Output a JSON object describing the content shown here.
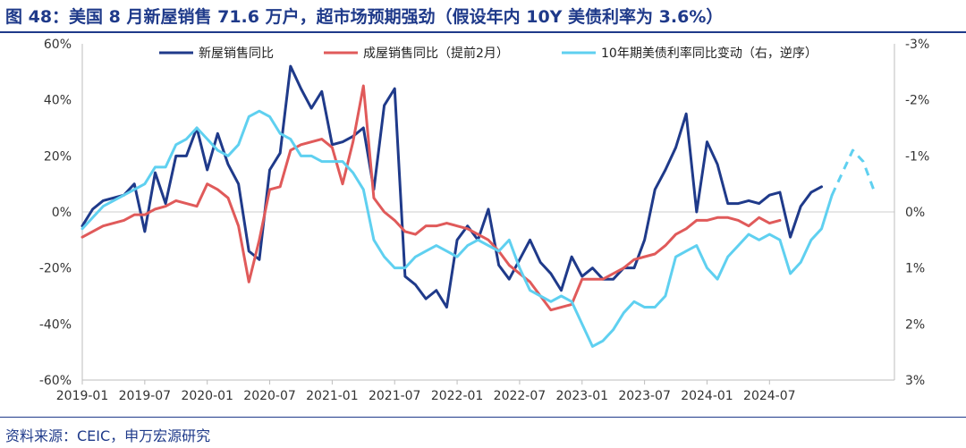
{
  "header": {
    "title": "图 48：美国 8 月新屋销售 71.6 万户，超市场预期强劲（假设年内 10Y 美债利率为 3.6%）"
  },
  "footer": {
    "source": "资料来源：CEIC，申万宏源研究"
  },
  "chart_data": {
    "type": "line",
    "title": "",
    "xlabel": "",
    "ylabel": "",
    "x_tick_labels": [
      "2019-01",
      "2019-07",
      "2020-01",
      "2020-07",
      "2021-01",
      "2021-07",
      "2022-01",
      "2022-07",
      "2023-01",
      "2023-07",
      "2024-01",
      "2024-07"
    ],
    "y_left": {
      "min": -60,
      "max": 60,
      "ticks": [
        "60%",
        "40%",
        "20%",
        "0%",
        "-20%",
        "-40%",
        "-60%"
      ]
    },
    "y_right": {
      "min": -3,
      "max": 3,
      "inverted": true,
      "ticks": [
        "-3%",
        "-2%",
        "-1%",
        "0%",
        "1%",
        "2%",
        "3%"
      ]
    },
    "legend_position": "top",
    "series": [
      {
        "name": "新屋销售同比",
        "color": "#1f3a8a",
        "axis": "left",
        "start": "2019-01",
        "values": [
          -5,
          1,
          4,
          5,
          6,
          10,
          -7,
          14,
          3,
          20,
          20,
          30,
          15,
          28,
          17,
          10,
          -14,
          -17,
          15,
          21,
          52,
          44,
          37,
          43,
          24,
          25,
          27,
          30,
          8,
          38,
          44,
          -23,
          -26,
          -31,
          -28,
          -34,
          -10,
          -5,
          -10,
          1,
          -19,
          -24,
          -17,
          -10,
          -18,
          -22,
          -28,
          -16,
          -23,
          -20,
          -24,
          -24,
          -20,
          -20,
          -10,
          8,
          15,
          23,
          35,
          0,
          25,
          17,
          3,
          3,
          4,
          3,
          6,
          7,
          -9,
          2,
          7,
          9
        ],
        "dashed_from_index": null
      },
      {
        "name": "成屋销售同比（提前2月）",
        "color": "#e05a5a",
        "axis": "left",
        "start": "2019-01",
        "values": [
          -9,
          -7,
          -5,
          -4,
          -3,
          -1,
          -1,
          1,
          2,
          4,
          3,
          2,
          10,
          8,
          5,
          -5,
          -25,
          -10,
          8,
          9,
          22,
          24,
          25,
          26,
          23,
          10,
          25,
          45,
          5,
          0,
          -3,
          -7,
          -8,
          -5,
          -5,
          -4,
          -5,
          -6,
          -8,
          -10,
          -14,
          -19,
          -22,
          -25,
          -30,
          -35,
          -34,
          -33,
          -24,
          -24,
          -24,
          -22,
          -20,
          -17,
          -16,
          -15,
          -12,
          -8,
          -6,
          -3,
          -3,
          -2,
          -2,
          -3,
          -5,
          -2,
          -4,
          -3
        ],
        "dashed_from_index": null
      },
      {
        "name": "10年期美债利率同比变动（右，逆序）",
        "color": "#5fd0f0",
        "axis": "right",
        "start": "2019-01",
        "values": [
          0.3,
          0.1,
          -0.1,
          -0.2,
          -0.3,
          -0.4,
          -0.5,
          -0.8,
          -0.8,
          -1.2,
          -1.3,
          -1.5,
          -1.3,
          -1.1,
          -1.0,
          -1.2,
          -1.7,
          -1.8,
          -1.7,
          -1.4,
          -1.3,
          -1.0,
          -1.0,
          -0.9,
          -0.9,
          -0.9,
          -0.7,
          -0.4,
          0.5,
          0.8,
          1.0,
          1.0,
          0.8,
          0.7,
          0.6,
          0.7,
          0.8,
          0.6,
          0.5,
          0.6,
          0.7,
          0.5,
          1.0,
          1.4,
          1.5,
          1.6,
          1.5,
          1.6,
          2.0,
          2.4,
          2.3,
          2.1,
          1.8,
          1.6,
          1.7,
          1.7,
          1.5,
          0.8,
          0.7,
          0.6,
          1.0,
          1.2,
          0.8,
          0.6,
          0.4,
          0.5,
          0.4,
          0.5,
          1.1,
          0.9,
          0.5,
          0.3,
          -0.3,
          -0.7,
          -1.1,
          -0.9,
          -0.4
        ],
        "dashed_from_index": 72
      }
    ]
  }
}
